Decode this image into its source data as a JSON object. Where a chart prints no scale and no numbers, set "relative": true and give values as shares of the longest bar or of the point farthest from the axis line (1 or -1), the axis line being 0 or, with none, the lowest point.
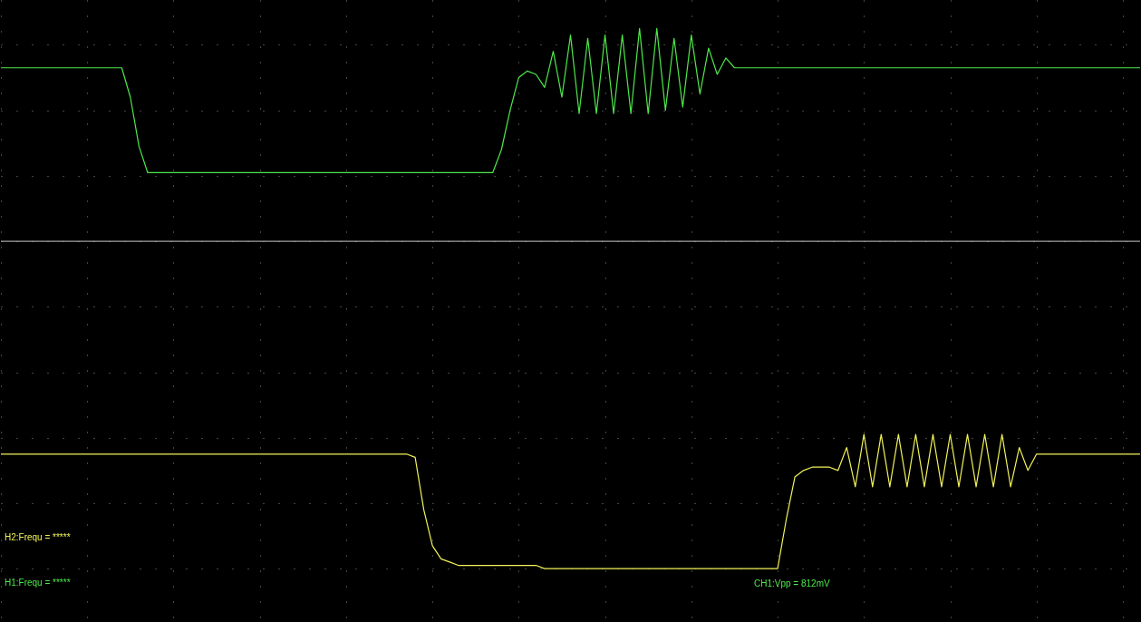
{
  "chart_data": {
    "type": "line",
    "relative": true,
    "grid": true,
    "legend": false,
    "marker": "none",
    "line_style": "solid",
    "categories": [
      null,
      null,
      null,
      null,
      null,
      null,
      null,
      null,
      null,
      null,
      null,
      null,
      null,
      null,
      null,
      null,
      null,
      null,
      null,
      null,
      null,
      null,
      null,
      null,
      null,
      null,
      null,
      null,
      null,
      null,
      null,
      null,
      null,
      null,
      null,
      null,
      null,
      null,
      null,
      null,
      null,
      null,
      null,
      null,
      null,
      null,
      null,
      null,
      null,
      null,
      null,
      null,
      null,
      null,
      null,
      null,
      null,
      null,
      null,
      null,
      null,
      null,
      null,
      null,
      null,
      null,
      null,
      null,
      null,
      null,
      null,
      null,
      null,
      null,
      null,
      null,
      null,
      null,
      null,
      null,
      null,
      null,
      null,
      null,
      null,
      null,
      null,
      null,
      null,
      null,
      null,
      null,
      null,
      null,
      null,
      null,
      null,
      null,
      null,
      null,
      null,
      null,
      null,
      null,
      null,
      null,
      null,
      null,
      null,
      null,
      null,
      null,
      null,
      null,
      null,
      null,
      null,
      null,
      null,
      null,
      null,
      null,
      null,
      null,
      null,
      null,
      null,
      null,
      null,
      null,
      null,
      null,
      null
    ],
    "series": [
      {
        "color": "#4ee84a",
        "values": [
          0.53,
          0.53,
          0.53,
          0.53,
          0.53,
          0.53,
          0.53,
          0.53,
          0.53,
          0.53,
          0.53,
          0.53,
          0.53,
          0.53,
          0.53,
          0.44,
          0.29,
          0.21,
          0.21,
          0.21,
          0.21,
          0.21,
          0.21,
          0.21,
          0.21,
          0.21,
          0.21,
          0.21,
          0.21,
          0.21,
          0.21,
          0.21,
          0.21,
          0.21,
          0.21,
          0.21,
          0.21,
          0.21,
          0.21,
          0.21,
          0.21,
          0.21,
          0.21,
          0.21,
          0.21,
          0.21,
          0.21,
          0.21,
          0.21,
          0.21,
          0.21,
          0.21,
          0.21,
          0.21,
          0.21,
          0.21,
          0.21,
          0.21,
          0.28,
          0.4,
          0.5,
          0.52,
          0.51,
          0.47,
          0.58,
          0.44,
          0.63,
          0.39,
          0.62,
          0.39,
          0.63,
          0.39,
          0.63,
          0.39,
          0.65,
          0.39,
          0.65,
          0.4,
          0.62,
          0.41,
          0.63,
          0.45,
          0.59,
          0.51,
          0.56,
          0.53,
          0.53,
          0.53,
          0.53,
          0.53,
          0.53,
          0.53,
          0.53,
          0.53,
          0.53,
          0.53,
          0.53,
          0.53,
          0.53,
          0.53,
          0.53,
          0.53,
          0.53,
          0.53,
          0.53,
          0.53,
          0.53,
          0.53,
          0.53,
          0.53,
          0.53,
          0.53,
          0.53,
          0.53,
          0.53,
          0.53,
          0.53,
          0.53,
          0.53,
          0.53,
          0.53,
          0.53,
          0.53,
          0.53,
          0.53,
          0.53,
          0.53,
          0.53,
          0.53,
          0.53,
          0.53,
          0.53,
          0.53
        ]
      },
      {
        "color": "#f2f25a",
        "values": [
          -0.65,
          -0.65,
          -0.65,
          -0.65,
          -0.65,
          -0.65,
          -0.65,
          -0.65,
          -0.65,
          -0.65,
          -0.65,
          -0.65,
          -0.65,
          -0.65,
          -0.65,
          -0.65,
          -0.65,
          -0.65,
          -0.65,
          -0.65,
          -0.65,
          -0.65,
          -0.65,
          -0.65,
          -0.65,
          -0.65,
          -0.65,
          -0.65,
          -0.65,
          -0.65,
          -0.65,
          -0.65,
          -0.65,
          -0.65,
          -0.65,
          -0.65,
          -0.65,
          -0.65,
          -0.65,
          -0.65,
          -0.65,
          -0.65,
          -0.65,
          -0.65,
          -0.65,
          -0.65,
          -0.65,
          -0.65,
          -0.66,
          -0.82,
          -0.93,
          -0.97,
          -0.98,
          -0.99,
          -0.99,
          -0.99,
          -0.99,
          -0.99,
          -0.99,
          -0.99,
          -0.99,
          -0.99,
          -0.99,
          -1,
          -1,
          -1,
          -1,
          -1,
          -1,
          -1,
          -1,
          -1,
          -1,
          -1,
          -1,
          -1,
          -1,
          -1,
          -1,
          -1,
          -1,
          -1,
          -1,
          -1,
          -1,
          -1,
          -1,
          -1,
          -1,
          -1,
          -1,
          -0.85,
          -0.72,
          -0.7,
          -0.69,
          -0.69,
          -0.69,
          -0.7,
          -0.63,
          -0.75,
          -0.59,
          -0.75,
          -0.59,
          -0.75,
          -0.59,
          -0.75,
          -0.59,
          -0.75,
          -0.59,
          -0.75,
          -0.59,
          -0.75,
          -0.59,
          -0.75,
          -0.59,
          -0.75,
          -0.59,
          -0.75,
          -0.63,
          -0.7,
          -0.65,
          -0.65,
          -0.65,
          -0.65,
          -0.65,
          -0.65,
          -0.65,
          -0.65,
          -0.65,
          -0.65,
          -0.65,
          -0.65,
          -0.65
        ]
      }
    ],
    "annotations": [
      "H2:Frequ = *****",
      "H1:Frequ = *****",
      "CH1:Vpp = 812mV"
    ]
  }
}
